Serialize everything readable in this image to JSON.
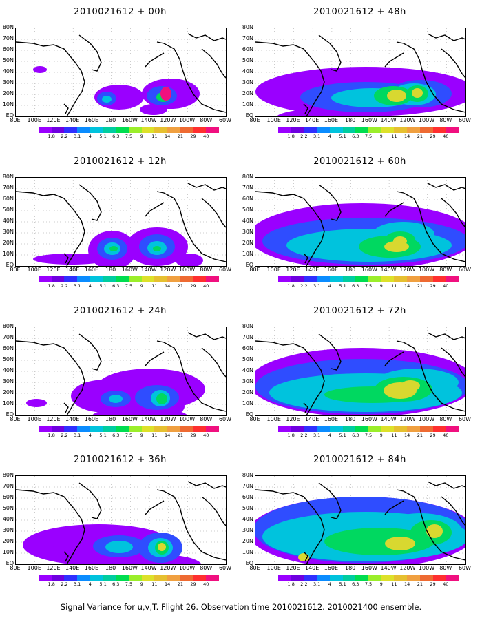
{
  "footer": "Signal Variance for u,v,T. Flight 26. Observation time 2010021612. 2010021400 ensemble.",
  "lat_labels": [
    "80N",
    "70N",
    "60N",
    "50N",
    "40N",
    "30N",
    "20N",
    "10N",
    "EQ"
  ],
  "lon_labels": [
    "80E",
    "100E",
    "120E",
    "140E",
    "160E",
    "180",
    "160W",
    "140W",
    "120W",
    "100W",
    "80W",
    "60W"
  ],
  "colorbar": {
    "labels": [
      "1.8",
      "2.2",
      "3.1",
      "4",
      "5.1",
      "6.3",
      "7.5",
      "9",
      "11",
      "14",
      "21",
      "29",
      "40"
    ],
    "colors": [
      "#9a00ff",
      "#6f00e0",
      "#2f2fff",
      "#0a8cff",
      "#00c3dd",
      "#00cda0",
      "#00dd50",
      "#9bee2a",
      "#dde12a",
      "#e6c030",
      "#f0a040",
      "#ee6a32",
      "#ff2f2f",
      "#f0107f"
    ]
  },
  "panels": [
    {
      "title": "2010021612 + 00h",
      "blobs": [
        [
          "purple",
          150,
          100,
          36,
          18
        ],
        [
          "purple",
          225,
          95,
          42,
          22
        ],
        [
          "purple",
          35,
          60,
          10,
          5
        ],
        [
          "purple",
          200,
          118,
          20,
          8
        ],
        [
          "blue",
          132,
          102,
          14,
          10
        ],
        [
          "blue",
          212,
          98,
          22,
          14
        ],
        [
          "cyan",
          132,
          103,
          7,
          5
        ],
        [
          "green",
          214,
          100,
          10,
          7
        ],
        [
          "magenta",
          218,
          95,
          8,
          10
        ]
      ]
    },
    {
      "title": "2010021612 + 12h",
      "blobs": [
        [
          "purple",
          80,
          118,
          55,
          8
        ],
        [
          "purple",
          140,
          105,
          35,
          28
        ],
        [
          "purple",
          205,
          100,
          45,
          28
        ],
        [
          "purple",
          252,
          120,
          20,
          10
        ],
        [
          "blue",
          140,
          103,
          22,
          16
        ],
        [
          "blue",
          205,
          100,
          26,
          18
        ],
        [
          "cyan",
          140,
          103,
          12,
          9
        ],
        [
          "cyan",
          205,
          102,
          14,
          10
        ],
        [
          "green",
          142,
          103,
          6,
          4
        ],
        [
          "green",
          205,
          103,
          6,
          4
        ]
      ]
    },
    {
      "title": "2010021612 + 24h",
      "blobs": [
        [
          "purple",
          130,
          100,
          50,
          24
        ],
        [
          "purple",
          195,
          90,
          80,
          30
        ],
        [
          "purple",
          180,
          130,
          70,
          14
        ],
        [
          "purple",
          30,
          110,
          15,
          6
        ],
        [
          "purple",
          220,
          115,
          25,
          14
        ],
        [
          "blue",
          145,
          104,
          22,
          12
        ],
        [
          "blue",
          205,
          102,
          32,
          18
        ],
        [
          "cyan",
          145,
          104,
          10,
          6
        ],
        [
          "cyan",
          210,
          103,
          14,
          12
        ],
        [
          "green",
          212,
          104,
          8,
          8
        ]
      ]
    },
    {
      "title": "2010021612 + 36h",
      "blobs": [
        [
          "purple",
          120,
          100,
          110,
          30
        ],
        [
          "purple",
          210,
          130,
          60,
          16
        ],
        [
          "purple",
          40,
          108,
          20,
          8
        ],
        [
          "blue",
          150,
          102,
          38,
          16
        ],
        [
          "blue",
          210,
          104,
          32,
          22
        ],
        [
          "cyan",
          150,
          103,
          20,
          9
        ],
        [
          "cyan",
          210,
          104,
          18,
          14
        ],
        [
          "green",
          212,
          104,
          10,
          10
        ],
        [
          "yellow",
          212,
          103,
          6,
          6
        ]
      ]
    },
    {
      "title": "2010021612 + 48h",
      "blobs": [
        [
          "purple",
          160,
          92,
          160,
          36
        ],
        [
          "purple",
          110,
          130,
          80,
          14
        ],
        [
          "blue",
          160,
          100,
          95,
          22
        ],
        [
          "blue",
          240,
          95,
          45,
          20
        ],
        [
          "cyan",
          170,
          101,
          60,
          14
        ],
        [
          "cyan",
          230,
          96,
          32,
          16
        ],
        [
          "green",
          200,
          98,
          28,
          14
        ],
        [
          "green",
          235,
          95,
          16,
          12
        ],
        [
          "yellow",
          205,
          98,
          14,
          9
        ],
        [
          "yellow",
          235,
          94,
          8,
          7
        ]
      ]
    },
    {
      "title": "2010021612 + 60h",
      "blobs": [
        [
          "purple",
          155,
          85,
          165,
          48
        ],
        [
          "blue",
          160,
          92,
          150,
          34
        ],
        [
          "cyan",
          165,
          98,
          120,
          24
        ],
        [
          "cyan",
          215,
          82,
          45,
          18
        ],
        [
          "green",
          195,
          100,
          45,
          16
        ],
        [
          "green",
          210,
          90,
          22,
          12
        ],
        [
          "yellow",
          205,
          100,
          18,
          8
        ],
        [
          "yellow",
          210,
          92,
          10,
          7
        ]
      ]
    },
    {
      "title": "2010021612 + 72h",
      "blobs": [
        [
          "purple",
          155,
          80,
          165,
          50
        ],
        [
          "blue",
          155,
          86,
          155,
          40
        ],
        [
          "cyan",
          160,
          95,
          140,
          28
        ],
        [
          "cyan",
          235,
          80,
          60,
          20
        ],
        [
          "green",
          170,
          98,
          70,
          12
        ],
        [
          "green",
          215,
          90,
          42,
          18
        ],
        [
          "yellow",
          210,
          92,
          24,
          12
        ],
        [
          "yellow",
          225,
          85,
          14,
          8
        ]
      ]
    },
    {
      "title": "2010021612 + 84h",
      "blobs": [
        [
          "purple",
          155,
          82,
          165,
          52
        ],
        [
          "blue",
          155,
          78,
          158,
          48
        ],
        [
          "cyan",
          160,
          88,
          150,
          36
        ],
        [
          "cyan",
          240,
          80,
          60,
          26
        ],
        [
          "green",
          180,
          95,
          80,
          20
        ],
        [
          "green",
          255,
          82,
          30,
          18
        ],
        [
          "yellow",
          210,
          98,
          22,
          10
        ],
        [
          "yellow",
          260,
          80,
          12,
          10
        ],
        [
          "yellow",
          70,
          118,
          8,
          6
        ]
      ]
    }
  ]
}
